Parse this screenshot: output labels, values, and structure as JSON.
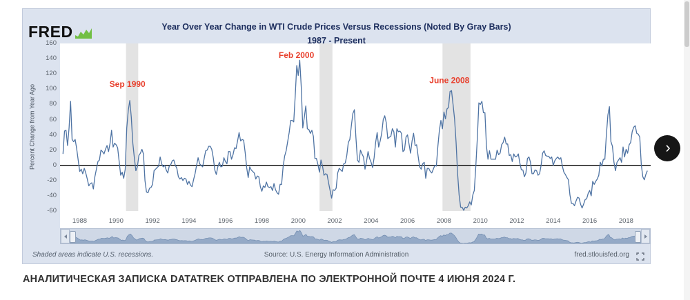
{
  "page": {
    "caption": "АНАЛИТИЧЕСКАЯ ЗАПИСКА DATATREK ОТПРАВЛЕНА ПО ЭЛЕКТРОННОЙ ПОЧТЕ 4 ИЮНЯ 2024 Г."
  },
  "brand": {
    "logo_text": "FRED"
  },
  "footer": {
    "note": "Shaded areas indicate U.S. recessions.",
    "source": "Source: U.S. Energy Information Administration",
    "site": "fred.stlouisfed.org"
  },
  "carousel": {
    "next_glyph": "›"
  },
  "chart_data": {
    "type": "line",
    "title": "Year Over Year Change in WTI Crude Prices Versus Recessions (Noted By Gray Bars)",
    "subtitle": "1987 - Present",
    "ylabel": "Percent Change from Year Ago",
    "ylim": [
      -60,
      160
    ],
    "ytick_step": 20,
    "xlim": [
      1986.92,
      2019.35
    ],
    "xticks": [
      1988,
      1990,
      1992,
      1994,
      1996,
      1998,
      2000,
      2002,
      2004,
      2006,
      2008,
      2010,
      2012,
      2014,
      2016,
      2018
    ],
    "grid": false,
    "zero_line": true,
    "line_color": "#4e73a3",
    "recession_color": "#e3e3e3",
    "annotation_color": "#e8402d",
    "recessions": [
      [
        1990.54,
        1991.21
      ],
      [
        2001.17,
        2001.88
      ],
      [
        2007.92,
        2009.46
      ]
    ],
    "annotations": [
      {
        "label": "Sep 1990",
        "x": 1990.62,
        "y": 103
      },
      {
        "label": "Feb 2000",
        "x": 1999.9,
        "y": 141
      },
      {
        "label": "June 2008",
        "x": 2008.3,
        "y": 108
      }
    ],
    "series": [
      {
        "name": "WTI crude oil price, percent change from year ago",
        "start_x": 1987.0833,
        "step_x": 0.0833333,
        "values": [
          15,
          45,
          46,
          26,
          49,
          84,
          34,
          31,
          34,
          22,
          7,
          -8,
          -5,
          -11,
          -4,
          -10,
          -18,
          -27,
          -24,
          -23,
          -31,
          -15,
          -5,
          5,
          7,
          20,
          18,
          15,
          21,
          26,
          18,
          29,
          46,
          24,
          29,
          27,
          23,
          5,
          -13,
          -9,
          -17,
          -5,
          49,
          72,
          85,
          63,
          29,
          10,
          -7,
          -2,
          13,
          16,
          21,
          15,
          -20,
          -35,
          -36,
          -30,
          -29,
          -25,
          -7,
          -5,
          -3,
          -1,
          11,
          2,
          -2,
          0,
          -6,
          -10,
          -1,
          1,
          6,
          7,
          0,
          -4,
          -15,
          -18,
          -16,
          -20,
          -17,
          -18,
          -25,
          -21,
          -26,
          -28,
          -19,
          -11,
          0,
          10,
          2,
          0,
          -2,
          9,
          19,
          20,
          25,
          25,
          21,
          10,
          -6,
          -12,
          -2,
          4,
          -2,
          -1,
          10,
          5,
          2,
          18,
          18,
          8,
          14,
          23,
          22,
          32,
          43,
          32,
          34,
          33,
          17,
          -3,
          -16,
          -2,
          -6,
          -8,
          -10,
          -18,
          -14,
          -15,
          -28,
          -34,
          -27,
          -29,
          -22,
          -28,
          -29,
          -28,
          -33,
          -24,
          -32,
          -36,
          -38,
          -25,
          -25,
          -2,
          12,
          19,
          31,
          43,
          59,
          59,
          57,
          92,
          131,
          118,
          138,
          103,
          49,
          63,
          78,
          48,
          47,
          42,
          46,
          38,
          9,
          9,
          1,
          -9,
          7,
          -1,
          -13,
          -11,
          -12,
          -23,
          -33,
          -43,
          -32,
          -33,
          -30,
          -10,
          -4,
          -6,
          -8,
          2,
          3,
          13,
          30,
          34,
          52,
          68,
          73,
          37,
          7,
          4,
          20,
          15,
          11,
          -5,
          5,
          18,
          9,
          4,
          -3,
          10,
          30,
          43,
          24,
          32,
          42,
          60,
          65,
          56,
          35,
          37,
          38,
          48,
          44,
          24,
          48,
          44,
          45,
          42,
          18,
          20,
          37,
          40,
          28,
          16,
          32,
          42,
          26,
          27,
          12,
          -2,
          -5,
          2,
          4,
          -17,
          -4,
          -4,
          -8,
          -10,
          -5,
          0,
          -1,
          25,
          46,
          59,
          48,
          70,
          61,
          74,
          76,
          97,
          98,
          80,
          61,
          30,
          -11,
          -39,
          -55,
          -55,
          -59,
          -55,
          -56,
          -53,
          -48,
          -52,
          -39,
          -33,
          -1,
          36,
          82,
          80,
          84,
          69,
          69,
          25,
          8,
          19,
          8,
          8,
          8,
          8,
          20,
          14,
          16,
          27,
          30,
          37,
          28,
          28,
          13,
          14,
          5,
          15,
          11,
          12,
          15,
          3,
          -6,
          -6,
          -15,
          -10,
          9,
          11,
          4,
          -11,
          -11,
          -6,
          -7,
          -13,
          -11,
          0,
          16,
          19,
          13,
          12,
          12,
          9,
          11,
          0,
          6,
          9,
          11,
          8,
          10,
          -1,
          -9,
          -12,
          -16,
          -19,
          -39,
          -50,
          -50,
          -53,
          -47,
          -42,
          -43,
          -51,
          -56,
          -51,
          -45,
          -44,
          -37,
          -33,
          -40,
          -21,
          -25,
          -21,
          -18,
          -13,
          4,
          -1,
          8,
          8,
          40,
          66,
          77,
          31,
          25,
          4,
          -7,
          4,
          7,
          10,
          4,
          24,
          11,
          21,
          16,
          27,
          30,
          44,
          50,
          52,
          42,
          41,
          37,
          1,
          -15,
          -19,
          -12,
          -7
        ]
      }
    ]
  }
}
